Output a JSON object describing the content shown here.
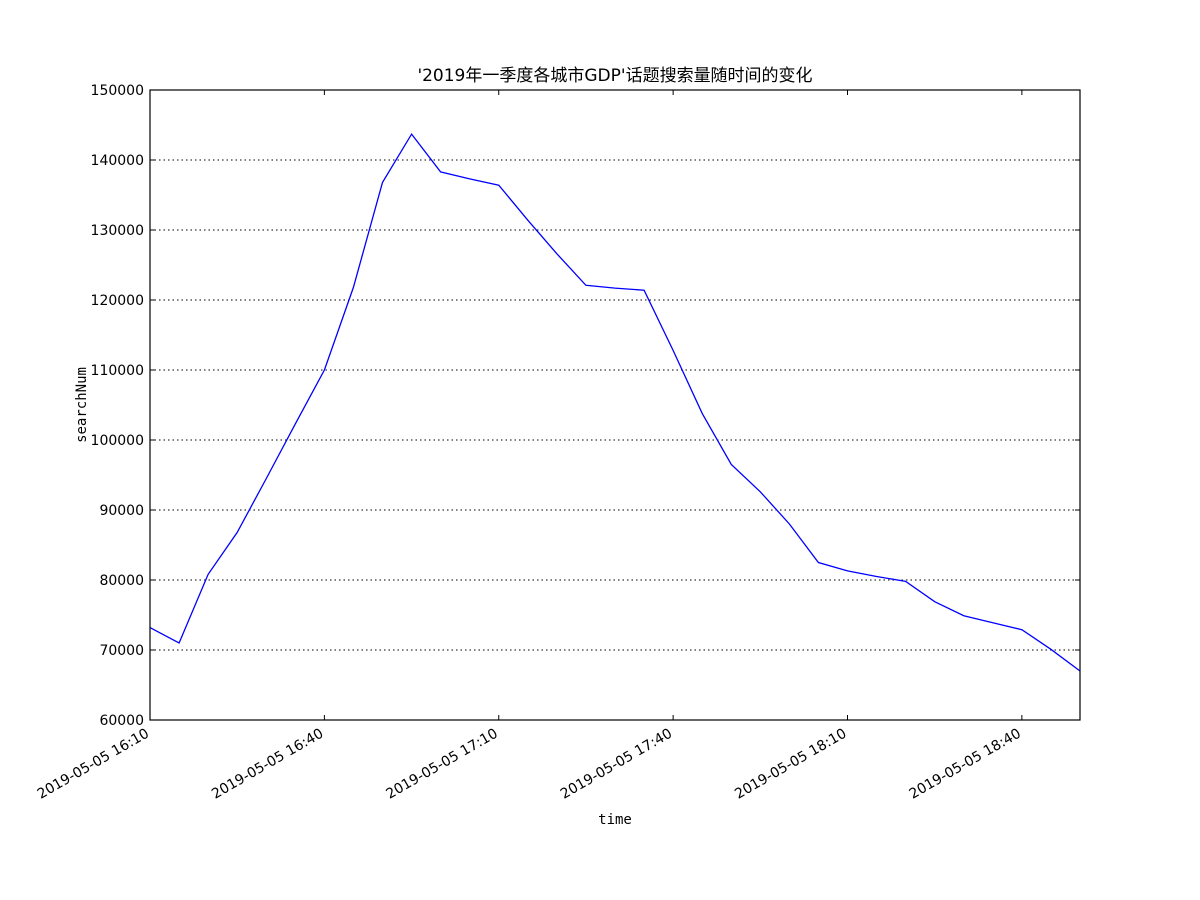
{
  "chart_data": {
    "type": "line",
    "title": "'2019年一季度各城市GDP'话题搜索量随时间的变化",
    "xlabel": "time",
    "ylabel": "searchNum",
    "ylim": [
      60000,
      150000
    ],
    "xlim_minutes": [
      0,
      160
    ],
    "grid": "horizontal dotted",
    "colors": {
      "line": "#0000ff",
      "grid": "#000000",
      "axes": "#000000"
    },
    "y_ticks": [
      60000,
      70000,
      80000,
      90000,
      100000,
      110000,
      120000,
      130000,
      140000,
      150000
    ],
    "y_tick_labels": [
      "60000",
      "70000",
      "80000",
      "90000",
      "100000",
      "110000",
      "120000",
      "130000",
      "140000",
      "150000"
    ],
    "x_ticks": [
      {
        "minutes": 0,
        "label": "2019-05-05 16:10"
      },
      {
        "minutes": 30,
        "label": "2019-05-05 16:40"
      },
      {
        "minutes": 60,
        "label": "2019-05-05 17:10"
      },
      {
        "minutes": 90,
        "label": "2019-05-05 17:40"
      },
      {
        "minutes": 120,
        "label": "2019-05-05 18:10"
      },
      {
        "minutes": 150,
        "label": "2019-05-05 18:40"
      }
    ],
    "series": [
      {
        "name": "searchNum",
        "x_minutes": [
          0,
          5,
          10,
          15,
          20,
          25,
          30,
          35,
          40,
          45,
          50,
          55,
          60,
          65,
          70,
          75,
          80,
          85,
          90,
          95,
          100,
          105,
          110,
          115,
          120,
          125,
          130,
          135,
          140,
          145,
          150,
          155,
          160
        ],
        "values": [
          73200,
          71000,
          80800,
          86800,
          94500,
          102300,
          110000,
          121800,
          136800,
          143700,
          138300,
          137300,
          136400,
          131400,
          126600,
          122100,
          121700,
          121400,
          112800,
          103800,
          96500,
          92600,
          88000,
          82500,
          81300,
          80500,
          79800,
          76900,
          74900,
          73900,
          72900,
          70100,
          67000
        ]
      }
    ]
  }
}
